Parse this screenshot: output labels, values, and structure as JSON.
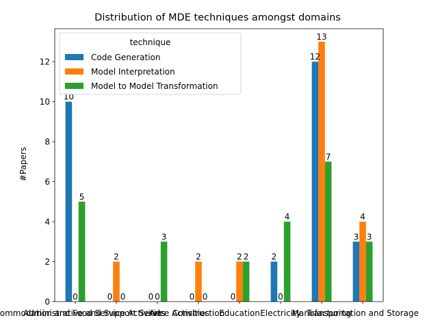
{
  "chart_data": {
    "type": "bar",
    "title": "Distribution of MDE techniques amongst domains",
    "xlabel": "",
    "ylabel": "#Papers",
    "ylim": [
      0,
      13.65
    ],
    "yticks": [
      0,
      2,
      4,
      6,
      8,
      10,
      12
    ],
    "grid": false,
    "legend": {
      "title": "technique",
      "placement": "top-left"
    },
    "categories": [
      "Accommodation and Food Service Activities",
      "Administrative and Support Service Activities",
      "Arts",
      "Construction",
      "Education",
      "Electricity",
      "Manufacturing",
      "Transportation and Storage"
    ],
    "series": [
      {
        "name": "Code Generation",
        "color": "#1f77b4",
        "values": [
          10,
          0,
          0,
          0,
          0,
          2,
          12,
          3
        ]
      },
      {
        "name": "Model Interpretation",
        "color": "#ff7f0e",
        "values": [
          0,
          2,
          0,
          2,
          2,
          0,
          13,
          4
        ]
      },
      {
        "name": "Model to Model Transformation",
        "color": "#2ca02c",
        "values": [
          5,
          0,
          3,
          0,
          2,
          4,
          7,
          3
        ]
      }
    ],
    "value_labels": [
      [
        "10",
        "",
        "",
        "",
        "",
        "2",
        "12",
        "3"
      ],
      [
        "0",
        "2",
        "",
        "2",
        "2",
        "0",
        "13",
        "4"
      ],
      [
        "5",
        "0",
        "3",
        "0",
        "2",
        "4",
        "7",
        "3"
      ]
    ],
    "value_labels_missing": [
      [
        null,
        "0",
        "0",
        "0",
        "0",
        null,
        null,
        null
      ],
      [
        null,
        null,
        "0",
        null,
        null,
        null,
        null,
        null
      ],
      [
        null,
        null,
        null,
        null,
        null,
        null,
        null,
        null
      ]
    ]
  }
}
